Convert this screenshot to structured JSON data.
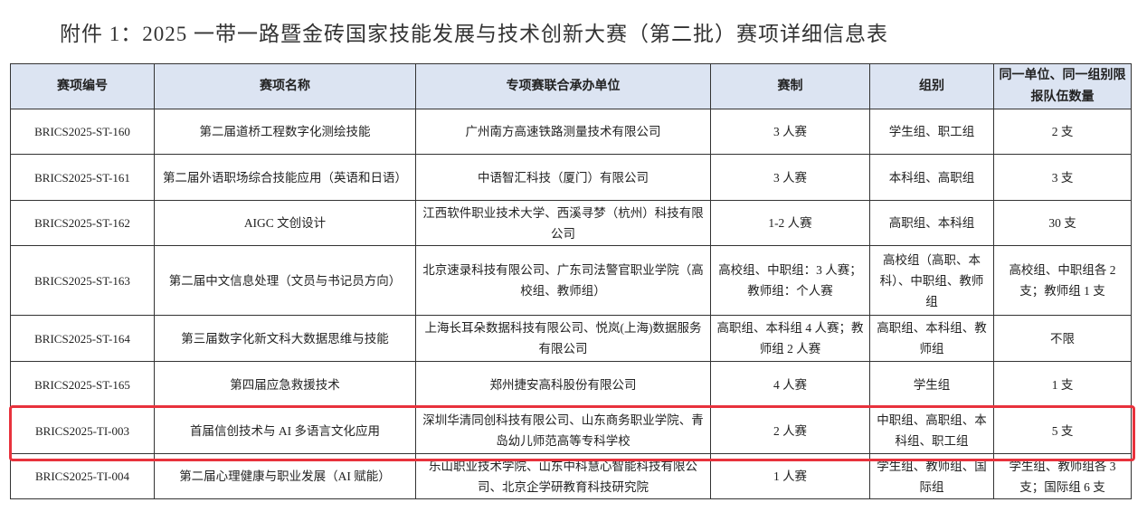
{
  "title": "附件 1：2025 一带一路暨金砖国家技能发展与技术创新大赛（第二批）赛项详细信息表",
  "headers": [
    "赛项编号",
    "赛项名称",
    "专项赛联合承办单位",
    "赛制",
    "组别",
    "同一单位、同一组别限报队伍数量"
  ],
  "rows": [
    {
      "id": "BRICS2025-ST-160",
      "name": "第二届道桥工程数字化测绘技能",
      "org": "广州南方高速铁路测量技术有限公司",
      "format": "3 人赛",
      "group": "学生组、职工组",
      "limit": "2 支"
    },
    {
      "id": "BRICS2025-ST-161",
      "name": "第二届外语职场综合技能应用（英语和日语）",
      "org": "中语智汇科技（厦门）有限公司",
      "format": "3 人赛",
      "group": "本科组、高职组",
      "limit": "3 支"
    },
    {
      "id": "BRICS2025-ST-162",
      "name": "AIGC 文创设计",
      "org": "江西软件职业技术大学、西溪寻梦（杭州）科技有限公司",
      "format": "1-2 人赛",
      "group": "高职组、本科组",
      "limit": "30 支"
    },
    {
      "id": "BRICS2025-ST-163",
      "name": "第二届中文信息处理（文员与书记员方向）",
      "org": "北京速录科技有限公司、广东司法警官职业学院（高校组、教师组）",
      "format": "高校组、中职组：3 人赛；教师组：个人赛",
      "group": "高校组（高职、本科）、中职组、教师组",
      "limit": "高校组、中职组各 2 支；教师组 1 支"
    },
    {
      "id": "BRICS2025-ST-164",
      "name": "第三届数字化新文科大数据思维与技能",
      "org": "上海长耳朵数据科技有限公司、悦岚(上海)数据服务有限公司",
      "format": "高职组、本科组 4 人赛；教师组 2 人赛",
      "group": "高职组、本科组、教师组",
      "limit": "不限"
    },
    {
      "id": "BRICS2025-ST-165",
      "name": "第四届应急救援技术",
      "org": "郑州捷安高科股份有限公司",
      "format": "4 人赛",
      "group": "学生组",
      "limit": "1 支"
    },
    {
      "id": "BRICS2025-TI-003",
      "name": "首届信创技术与 AI 多语言文化应用",
      "org": "深圳华清同创科技有限公司、山东商务职业学院、青岛幼儿师范高等专科学校",
      "format": "2 人赛",
      "group": "中职组、高职组、本科组、职工组",
      "limit": "5 支",
      "highlighted": true
    },
    {
      "id": "BRICS2025-TI-004",
      "name": "第二届心理健康与职业发展（AI 赋能）",
      "org": "乐山职业技术学院、山东中科慧心智能科技有限公司、北京企学研教育科技研究院",
      "format": "1 人赛",
      "group": "学生组、教师组、国际组",
      "limit": "学生组、教师组各 3 支；国际组 6 支"
    }
  ],
  "highlight_color": "#e8323c",
  "header_bg": "#dce4f2"
}
